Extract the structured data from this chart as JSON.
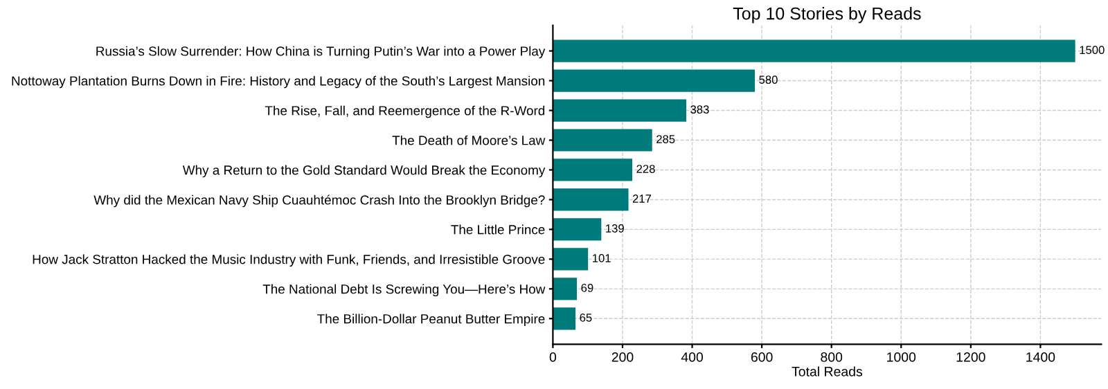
{
  "chart_data": {
    "type": "bar",
    "orientation": "horizontal",
    "title": "Top 10 Stories by Reads",
    "xlabel": "Total Reads",
    "categories": [
      "Russia’s Slow Surrender: How China is Turning Putin’s War into a Power Play",
      "Nottoway Plantation Burns Down in Fire: History and Legacy of the South’s Largest Mansion",
      "The Rise, Fall, and Reemergence of the R-Word",
      "The Death of Moore’s Law",
      "Why a Return to the Gold Standard Would Break the Economy",
      "Why did the Mexican Navy Ship Cuauhtémoc Crash Into the Brooklyn Bridge?",
      "The Little Prince",
      "How Jack Stratton Hacked the Music Industry with Funk, Friends, and Irresistible Groove",
      "The National Debt Is Screwing You—Here’s How",
      "The Billion-Dollar Peanut Butter Empire"
    ],
    "values": [
      1500,
      580,
      383,
      285,
      228,
      217,
      139,
      101,
      69,
      65
    ],
    "color": "#007b7b",
    "data_labels": true,
    "grid": true,
    "xlim": [
      0,
      1575
    ],
    "xticks": [
      0,
      200,
      400,
      600,
      800,
      1000,
      1200,
      1400
    ]
  }
}
